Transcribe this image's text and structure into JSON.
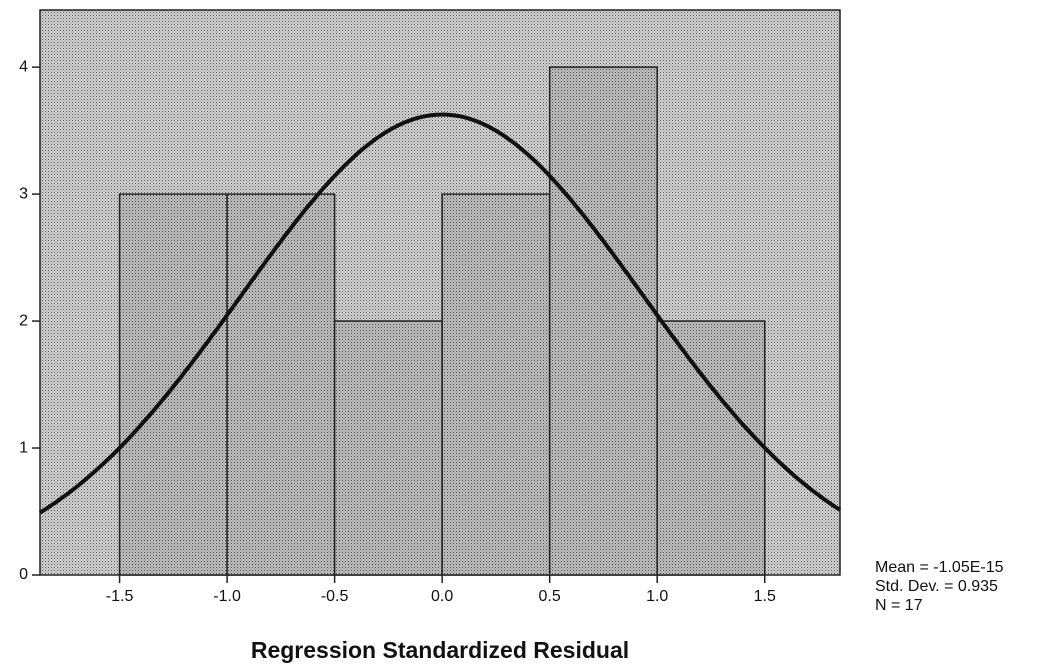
{
  "chart_data": {
    "type": "histogram",
    "bins": [
      -1.5,
      -1.0,
      -0.5,
      0.0,
      0.5,
      1.0,
      1.5
    ],
    "values": [
      3,
      3,
      2,
      3,
      4,
      2
    ],
    "xlim": [
      -1.87,
      1.85
    ],
    "ylim": [
      0,
      4.45
    ],
    "xticks": [
      -1.5,
      {
        "value": -1.0,
        "label": "-1.0"
      },
      -0.5,
      {
        "value": 0.0,
        "label": "0.0"
      },
      0.5,
      {
        "value": 1.0,
        "label": "1.0"
      },
      1.5
    ],
    "yticks": [
      0,
      1,
      2,
      3,
      4
    ],
    "x_label": "Regression Standardized Residual",
    "stats": [
      {
        "value": -1.05e-15,
        "label": "Mean = -1.05E-15"
      },
      {
        "value": 0.935,
        "label": "Std. Dev. = 0.935"
      },
      {
        "value": 17,
        "label": "N = 17"
      }
    ],
    "normal_curve": true
  }
}
